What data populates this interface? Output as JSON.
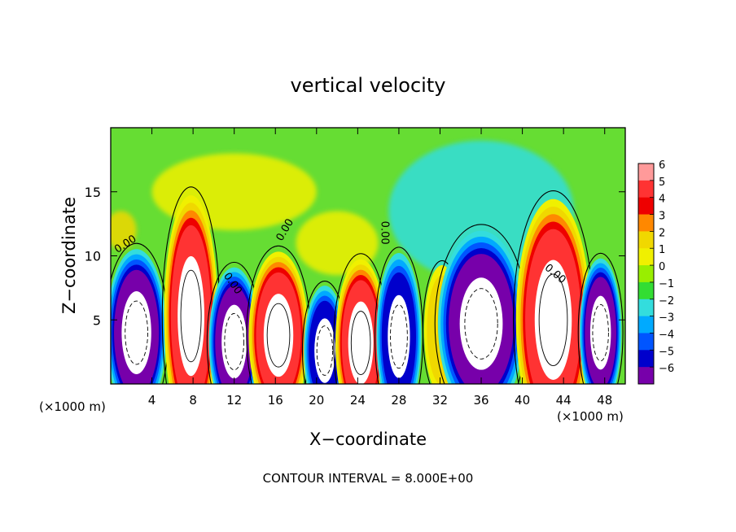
{
  "chart_data": {
    "type": "heatmap",
    "title": "vertical velocity",
    "xlabel": "X−coordinate",
    "ylabel": "Z−coordinate",
    "x_unit": "(×1000 m)",
    "x_unit_right": "(×1000 m)",
    "xlim": [
      0,
      50
    ],
    "ylim": [
      0,
      20
    ],
    "x_ticks": [
      4,
      8,
      12,
      16,
      20,
      24,
      28,
      32,
      36,
      40,
      44,
      48
    ],
    "x_tick_labels": [
      "4",
      "8",
      "12",
      "16",
      "20",
      "24",
      "28",
      "32",
      "36",
      "40",
      "44",
      "48"
    ],
    "y_ticks": [
      5,
      10,
      15
    ],
    "y_tick_labels": [
      "5",
      "10",
      "15"
    ],
    "colorbar": {
      "levels": [
        6,
        5,
        4,
        3,
        2,
        1,
        0,
        -1,
        -2,
        -3,
        -4,
        -5,
        -6
      ],
      "labels": [
        "6",
        "5",
        "4",
        "3",
        "2",
        "1",
        "0",
        "−1",
        "−2",
        "−3",
        "−4",
        "−5",
        "−6"
      ],
      "colors": [
        "#ff9a9a",
        "#ff3333",
        "#ee0000",
        "#ff8800",
        "#f0d800",
        "#f0f000",
        "#99ee00",
        "#33dd33",
        "#33dddd",
        "#00aaff",
        "#0055ff",
        "#0000cc",
        "#7700aa"
      ]
    },
    "contour_labels": [
      {
        "text": "0.00",
        "x": 1.6,
        "y": 10.7,
        "angle": -33
      },
      {
        "text": "0.00",
        "x": 11.6,
        "y": 7.7,
        "angle": 55
      },
      {
        "text": "0.00",
        "x": 17.2,
        "y": 11.9,
        "angle": -60
      },
      {
        "text": "0.00",
        "x": 26.3,
        "y": 11.8,
        "angle": 90
      },
      {
        "text": "0.00",
        "x": 43.0,
        "y": 8.4,
        "angle": 40
      }
    ],
    "cells": [
      {
        "x": 2.5,
        "y": 4.0,
        "rx": 2.0,
        "ry": 4.5,
        "w": -6
      },
      {
        "x": 7.8,
        "y": 5.3,
        "rx": 1.8,
        "ry": 6.5,
        "w": 6
      },
      {
        "x": 12.0,
        "y": 3.3,
        "rx": 1.7,
        "ry": 4.0,
        "w": -6
      },
      {
        "x": 16.3,
        "y": 3.8,
        "rx": 2.0,
        "ry": 4.5,
        "w": 6
      },
      {
        "x": 20.8,
        "y": 2.6,
        "rx": 1.4,
        "ry": 3.5,
        "w": -5
      },
      {
        "x": 24.3,
        "y": 3.2,
        "rx": 1.7,
        "ry": 4.5,
        "w": 6
      },
      {
        "x": 28.0,
        "y": 3.7,
        "rx": 1.5,
        "ry": 4.5,
        "w": -5
      },
      {
        "x": 32.2,
        "y": 4.2,
        "rx": 1.2,
        "ry": 3.5,
        "w": 2
      },
      {
        "x": 36.0,
        "y": 4.7,
        "rx": 2.9,
        "ry": 5.0,
        "w": -6
      },
      {
        "x": 43.0,
        "y": 5.0,
        "rx": 2.5,
        "ry": 6.5,
        "w": 6
      },
      {
        "x": 47.6,
        "y": 4.0,
        "rx": 1.4,
        "ry": 4.0,
        "w": -6
      }
    ],
    "upper_regions": [
      {
        "x": 36.0,
        "y": 13.5,
        "rx": 9.0,
        "ry": 5.5,
        "w": -2
      },
      {
        "x": 12.0,
        "y": 15.0,
        "rx": 8.0,
        "ry": 3.0,
        "w": 1
      },
      {
        "x": 22.0,
        "y": 11.0,
        "rx": 4.0,
        "ry": 2.5,
        "w": 1
      },
      {
        "x": 1.0,
        "y": 12.0,
        "rx": 1.5,
        "ry": 1.5,
        "w": 2
      }
    ],
    "footer": "CONTOUR INTERVAL = 8.000E+00"
  }
}
